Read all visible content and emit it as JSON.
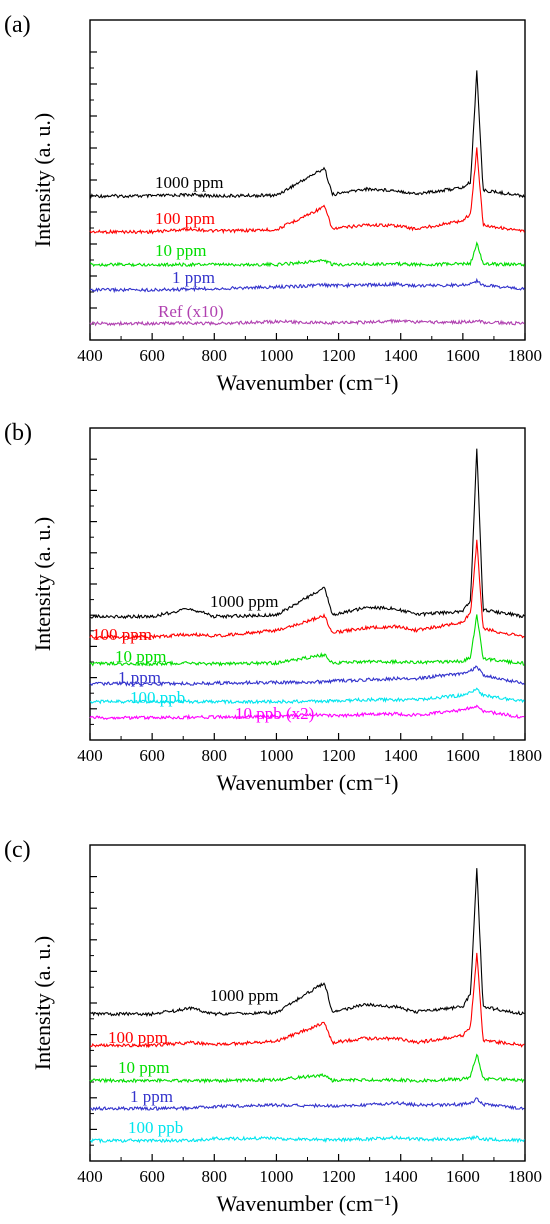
{
  "figure": {
    "panels": [
      {
        "label": "(a)",
        "xlabel": "Wavenumber (cm⁻¹)",
        "ylabel": "Intensity (a. u.)"
      },
      {
        "label": "(b)",
        "xlabel": "Wavenumber (cm⁻¹)",
        "ylabel": "Intensity (a. u.)"
      },
      {
        "label": "(c)",
        "xlabel": "Wavenumber (cm⁻¹)",
        "ylabel": "Intensity (a. u.)"
      }
    ]
  },
  "chart_data": [
    {
      "type": "line",
      "panel": "(a)",
      "xlabel": "Wavenumber (cm⁻¹)",
      "ylabel": "Intensity (a. u.)",
      "xlim": [
        400,
        1800
      ],
      "x_ticks": [
        400,
        600,
        800,
        1000,
        1200,
        1400,
        1600,
        1800
      ],
      "y_ticks_labeled": false,
      "grid": false,
      "x": [
        400,
        600,
        725,
        800,
        1000,
        1155,
        1180,
        1285,
        1385,
        1450,
        1600,
        1625,
        1645,
        1665,
        1800
      ],
      "series": [
        {
          "name": "1000 ppm",
          "color": "#000000",
          "values": [
            0.1,
            0.1,
            0.12,
            0.1,
            0.11,
            0.5,
            0.12,
            0.2,
            0.18,
            0.13,
            0.22,
            0.3,
            1.9,
            0.18,
            0.1
          ]
        },
        {
          "name": "100 ppm",
          "color": "#ff0000",
          "values": [
            0.06,
            0.06,
            0.1,
            0.07,
            0.09,
            0.42,
            0.1,
            0.16,
            0.15,
            0.1,
            0.22,
            0.32,
            1.25,
            0.16,
            0.06
          ]
        },
        {
          "name": "10 ppm",
          "color": "#00dd00",
          "values": [
            0.02,
            0.02,
            0.02,
            0.02,
            0.02,
            0.08,
            0.02,
            0.03,
            0.03,
            0.02,
            0.03,
            0.04,
            0.32,
            0.03,
            0.02
          ]
        },
        {
          "name": "1 ppm",
          "color": "#3333cc",
          "values": [
            0.03,
            0.03,
            0.04,
            0.05,
            0.07,
            0.1,
            0.09,
            0.1,
            0.11,
            0.09,
            0.1,
            0.12,
            0.16,
            0.1,
            0.04
          ]
        },
        {
          "name": "Ref (x10)",
          "color": "#b040b0",
          "values": [
            0.02,
            0.02,
            0.03,
            0.02,
            0.05,
            0.03,
            0.03,
            0.04,
            0.06,
            0.04,
            0.04,
            0.05,
            0.07,
            0.04,
            0.02
          ]
        }
      ]
    },
    {
      "type": "line",
      "panel": "(b)",
      "xlabel": "Wavenumber (cm⁻¹)",
      "ylabel": "Intensity (a. u.)",
      "xlim": [
        400,
        1800
      ],
      "x_ticks": [
        400,
        600,
        800,
        1000,
        1200,
        1400,
        1600,
        1800
      ],
      "y_ticks_labeled": false,
      "grid": false,
      "x": [
        400,
        600,
        725,
        800,
        1000,
        1155,
        1180,
        1285,
        1385,
        1450,
        1600,
        1625,
        1645,
        1665,
        1800
      ],
      "series": [
        {
          "name": "1000 ppm",
          "color": "#000000",
          "values": [
            0.1,
            0.1,
            0.22,
            0.1,
            0.12,
            0.55,
            0.12,
            0.24,
            0.22,
            0.13,
            0.18,
            0.35,
            2.7,
            0.2,
            0.1
          ]
        },
        {
          "name": "100 ppm",
          "color": "#ff0000",
          "values": [
            0.08,
            0.08,
            0.12,
            0.09,
            0.18,
            0.4,
            0.14,
            0.22,
            0.24,
            0.18,
            0.3,
            0.45,
            1.55,
            0.2,
            0.08
          ]
        },
        {
          "name": "10 ppm",
          "color": "#00dd00",
          "values": [
            0.02,
            0.02,
            0.03,
            0.02,
            0.03,
            0.16,
            0.03,
            0.05,
            0.05,
            0.04,
            0.06,
            0.12,
            0.78,
            0.1,
            0.02
          ]
        },
        {
          "name": "1 ppm",
          "color": "#3333cc",
          "values": [
            0.02,
            0.02,
            0.02,
            0.03,
            0.04,
            0.05,
            0.06,
            0.08,
            0.1,
            0.1,
            0.18,
            0.22,
            0.28,
            0.15,
            0.02
          ]
        },
        {
          "name": "100 ppb",
          "color": "#00e5ee",
          "values": [
            0.02,
            0.02,
            0.02,
            0.02,
            0.02,
            0.03,
            0.03,
            0.05,
            0.05,
            0.05,
            0.12,
            0.16,
            0.22,
            0.12,
            0.02
          ]
        },
        {
          "name": "10 ppb (x2)",
          "color": "#ff00ff",
          "values": [
            0.02,
            0.02,
            0.03,
            0.03,
            0.04,
            0.07,
            0.05,
            0.07,
            0.08,
            0.06,
            0.14,
            0.18,
            0.2,
            0.12,
            0.02
          ]
        }
      ]
    },
    {
      "type": "line",
      "panel": "(c)",
      "xlabel": "Wavenumber (cm⁻¹)",
      "ylabel": "Intensity (a. u.)",
      "xlim": [
        400,
        1800
      ],
      "x_ticks": [
        400,
        600,
        800,
        1000,
        1200,
        1400,
        1600,
        1800
      ],
      "y_ticks_labeled": false,
      "grid": false,
      "x": [
        400,
        600,
        725,
        800,
        1000,
        1155,
        1180,
        1285,
        1385,
        1450,
        1600,
        1625,
        1645,
        1665,
        1800
      ],
      "series": [
        {
          "name": "1000 ppm",
          "color": "#000000",
          "values": [
            0.1,
            0.1,
            0.18,
            0.1,
            0.12,
            0.55,
            0.12,
            0.24,
            0.2,
            0.13,
            0.2,
            0.4,
            2.2,
            0.2,
            0.1
          ]
        },
        {
          "name": "100 ppm",
          "color": "#ff0000",
          "values": [
            0.08,
            0.08,
            0.12,
            0.09,
            0.14,
            0.4,
            0.12,
            0.18,
            0.18,
            0.12,
            0.22,
            0.35,
            1.4,
            0.15,
            0.08
          ]
        },
        {
          "name": "10 ppm",
          "color": "#00dd00",
          "values": [
            0.02,
            0.02,
            0.02,
            0.02,
            0.03,
            0.1,
            0.02,
            0.03,
            0.03,
            0.02,
            0.04,
            0.08,
            0.4,
            0.05,
            0.02
          ]
        },
        {
          "name": "1 ppm",
          "color": "#3333cc",
          "values": [
            0.02,
            0.02,
            0.03,
            0.05,
            0.07,
            0.06,
            0.05,
            0.07,
            0.1,
            0.07,
            0.08,
            0.1,
            0.16,
            0.08,
            0.02
          ]
        },
        {
          "name": "100 ppb",
          "color": "#00e5ee",
          "values": [
            0.02,
            0.02,
            0.02,
            0.05,
            0.05,
            0.03,
            0.03,
            0.04,
            0.06,
            0.04,
            0.04,
            0.05,
            0.07,
            0.04,
            0.02
          ]
        }
      ]
    }
  ]
}
